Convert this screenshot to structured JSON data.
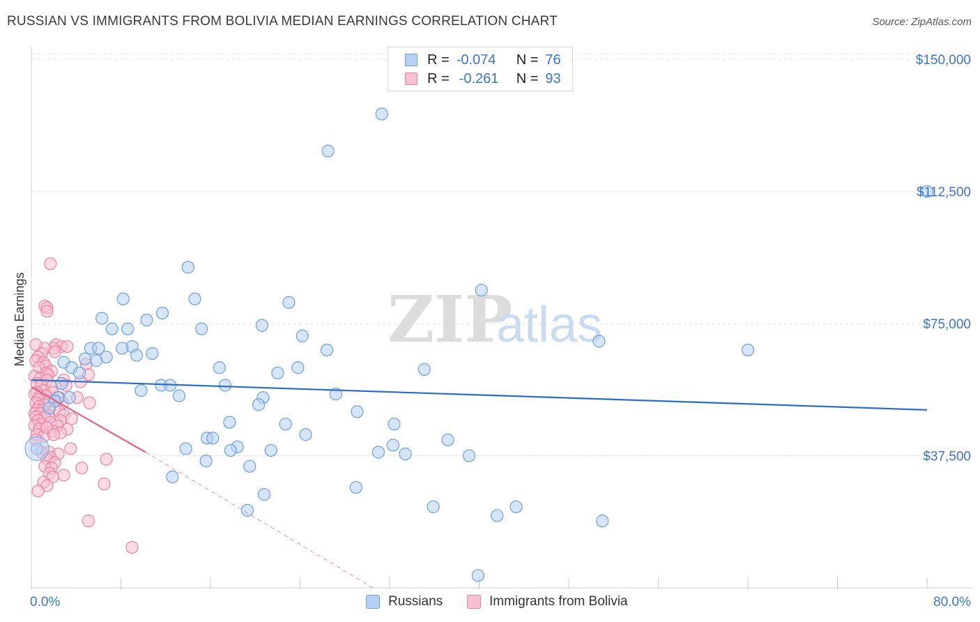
{
  "header": {
    "title": "RUSSIAN VS IMMIGRANTS FROM BOLIVIA MEDIAN EARNINGS CORRELATION CHART",
    "source": "Source: ZipAtlas.com"
  },
  "watermark": {
    "zip": "ZIP",
    "atlas": "atlas"
  },
  "colors": {
    "russians_fill": "#b7d0f3",
    "russians_stroke": "#6a9fdc",
    "russians_line": "#2d6cc4",
    "bolivia_fill": "#f7c0d0",
    "bolivia_stroke": "#e882a3",
    "bolivia_line": "#e0628a",
    "axis_label": "#3b74c4"
  },
  "legend": {
    "rows": [
      {
        "r_label": "R =",
        "r_value": "-0.074",
        "n_label": "N =",
        "n_value": "76"
      },
      {
        "r_label": "R =",
        "r_value": "-0.261",
        "n_label": "N =",
        "n_value": "93"
      }
    ]
  },
  "bottom_legend": {
    "russians": "Russians",
    "bolivia": "Immigrants from Bolivia"
  },
  "chart_data": {
    "type": "scatter",
    "title": "RUSSIAN VS IMMIGRANTS FROM BOLIVIA MEDIAN EARNINGS CORRELATION CHART",
    "xlabel": "",
    "ylabel": "Median Earnings",
    "xlim": [
      0,
      80
    ],
    "ylim": [
      0,
      153000
    ],
    "x_tick_labels": [
      "0.0%",
      "80.0%"
    ],
    "y_ticks": [
      37500,
      75000,
      112500,
      150000
    ],
    "y_tick_labels": [
      "$37,500",
      "$75,000",
      "$112,500",
      "$150,000"
    ],
    "grid": true,
    "series": [
      {
        "name": "Russians",
        "r": -0.074,
        "n": 76,
        "trend": {
          "x0": 0,
          "y0": 59000,
          "x1": 80,
          "y1": 50500
        },
        "points": [
          [
            31.3,
            134500
          ],
          [
            26.5,
            124000
          ],
          [
            80.0,
            112500
          ],
          [
            14.0,
            91000
          ],
          [
            40.2,
            84500
          ],
          [
            8.2,
            82000
          ],
          [
            14.6,
            82000
          ],
          [
            23.0,
            81000
          ],
          [
            11.7,
            78000
          ],
          [
            6.3,
            76500
          ],
          [
            10.3,
            76000
          ],
          [
            20.6,
            74500
          ],
          [
            7.2,
            73500
          ],
          [
            8.6,
            73500
          ],
          [
            15.2,
            73500
          ],
          [
            24.2,
            71500
          ],
          [
            9.0,
            68500
          ],
          [
            5.3,
            68000
          ],
          [
            6.0,
            68000
          ],
          [
            8.1,
            68000
          ],
          [
            26.4,
            67500
          ],
          [
            64.0,
            67500
          ],
          [
            50.7,
            70000
          ],
          [
            10.8,
            66500
          ],
          [
            9.4,
            66000
          ],
          [
            6.7,
            65500
          ],
          [
            4.8,
            65000
          ],
          [
            5.8,
            64500
          ],
          [
            2.9,
            64000
          ],
          [
            3.6,
            62500
          ],
          [
            16.8,
            62500
          ],
          [
            23.8,
            62500
          ],
          [
            4.3,
            61000
          ],
          [
            22.0,
            61000
          ],
          [
            35.1,
            62000
          ],
          [
            2.7,
            58000
          ],
          [
            11.6,
            57500
          ],
          [
            12.4,
            57500
          ],
          [
            17.3,
            57500
          ],
          [
            9.8,
            56000
          ],
          [
            27.2,
            55000
          ],
          [
            13.2,
            54500
          ],
          [
            2.4,
            54000
          ],
          [
            3.4,
            54000
          ],
          [
            20.7,
            54000
          ],
          [
            2.1,
            53000
          ],
          [
            20.3,
            52000
          ],
          [
            1.6,
            51000
          ],
          [
            29.1,
            50000
          ],
          [
            17.7,
            47000
          ],
          [
            22.7,
            46500
          ],
          [
            32.4,
            46500
          ],
          [
            24.5,
            43500
          ],
          [
            15.7,
            42500
          ],
          [
            16.2,
            42500
          ],
          [
            37.2,
            42000
          ],
          [
            32.3,
            40500
          ],
          [
            18.4,
            40000
          ],
          [
            17.8,
            39000
          ],
          [
            13.8,
            39500
          ],
          [
            21.4,
            39000
          ],
          [
            31.0,
            38500
          ],
          [
            33.4,
            38000
          ],
          [
            39.1,
            37500
          ],
          [
            15.6,
            36000
          ],
          [
            19.5,
            34500
          ],
          [
            12.6,
            31500
          ],
          [
            29.0,
            28500
          ],
          [
            20.8,
            26500
          ],
          [
            35.9,
            23000
          ],
          [
            43.3,
            23000
          ],
          [
            19.3,
            22000
          ],
          [
            41.6,
            20500
          ],
          [
            51.0,
            19000
          ],
          [
            39.9,
            3500
          ],
          [
            0.5,
            39500
          ]
        ]
      },
      {
        "name": "Immigrants from Bolivia",
        "r": -0.261,
        "n": 93,
        "trend": {
          "x0": 0,
          "y0": 57000,
          "x1": 10.2,
          "y1": 38500,
          "dash_x1": 30.5,
          "dash_y1": 0
        },
        "points": [
          [
            1.7,
            92000
          ],
          [
            1.2,
            80000
          ],
          [
            1.4,
            79500
          ],
          [
            1.4,
            78500
          ],
          [
            2.2,
            69000
          ],
          [
            2.7,
            68500
          ],
          [
            3.2,
            68500
          ],
          [
            2.0,
            68000
          ],
          [
            1.2,
            68000
          ],
          [
            0.4,
            69000
          ],
          [
            2.1,
            67000
          ],
          [
            0.9,
            66500
          ],
          [
            0.6,
            65500
          ],
          [
            0.4,
            64500
          ],
          [
            1.1,
            64000
          ],
          [
            1.3,
            63000
          ],
          [
            4.9,
            63500
          ],
          [
            0.7,
            62500
          ],
          [
            1.8,
            61500
          ],
          [
            1.3,
            61000
          ],
          [
            1.5,
            60500
          ],
          [
            5.1,
            60500
          ],
          [
            0.3,
            60000
          ],
          [
            0.8,
            59500
          ],
          [
            1.4,
            59000
          ],
          [
            2.9,
            59000
          ],
          [
            4.4,
            58500
          ],
          [
            0.5,
            58000
          ],
          [
            0.9,
            57500
          ],
          [
            3.1,
            57500
          ],
          [
            1.8,
            57000
          ],
          [
            1.1,
            56000
          ],
          [
            0.5,
            55500
          ],
          [
            1.9,
            55500
          ],
          [
            0.3,
            55000
          ],
          [
            0.8,
            54500
          ],
          [
            1.3,
            54500
          ],
          [
            2.5,
            54000
          ],
          [
            4.1,
            54000
          ],
          [
            0.6,
            53500
          ],
          [
            1.6,
            53000
          ],
          [
            2.8,
            52500
          ],
          [
            0.4,
            52500
          ],
          [
            1.2,
            52000
          ],
          [
            0.7,
            51500
          ],
          [
            2.1,
            51000
          ],
          [
            5.2,
            52500
          ],
          [
            0.5,
            50500
          ],
          [
            1.0,
            50500
          ],
          [
            2.5,
            50000
          ],
          [
            0.3,
            49500
          ],
          [
            0.8,
            49500
          ],
          [
            1.5,
            49000
          ],
          [
            2.9,
            49000
          ],
          [
            0.4,
            48500
          ],
          [
            1.2,
            48500
          ],
          [
            3.6,
            48000
          ],
          [
            0.6,
            47500
          ],
          [
            2.6,
            47500
          ],
          [
            1.7,
            47000
          ],
          [
            0.9,
            46500
          ],
          [
            0.3,
            46000
          ],
          [
            2.3,
            46000
          ],
          [
            1.4,
            45500
          ],
          [
            3.2,
            45000
          ],
          [
            0.7,
            45000
          ],
          [
            1.9,
            44500
          ],
          [
            2.6,
            44000
          ],
          [
            0.5,
            43500
          ],
          [
            1.1,
            43000
          ],
          [
            0.4,
            42000
          ],
          [
            3.5,
            39500
          ],
          [
            1.6,
            38500
          ],
          [
            0.9,
            38500
          ],
          [
            2.4,
            38000
          ],
          [
            1.7,
            37000
          ],
          [
            1.4,
            36500
          ],
          [
            6.7,
            36500
          ],
          [
            2.1,
            35500
          ],
          [
            1.2,
            34500
          ],
          [
            1.8,
            34000
          ],
          [
            4.5,
            34000
          ],
          [
            1.6,
            32500
          ],
          [
            2.9,
            32000
          ],
          [
            1.9,
            31500
          ],
          [
            1.1,
            30000
          ],
          [
            6.5,
            29500
          ],
          [
            1.4,
            29000
          ],
          [
            0.6,
            27500
          ],
          [
            5.1,
            19000
          ],
          [
            9.0,
            11500
          ],
          [
            1.4,
            45500
          ],
          [
            2.0,
            43500
          ]
        ]
      }
    ]
  }
}
